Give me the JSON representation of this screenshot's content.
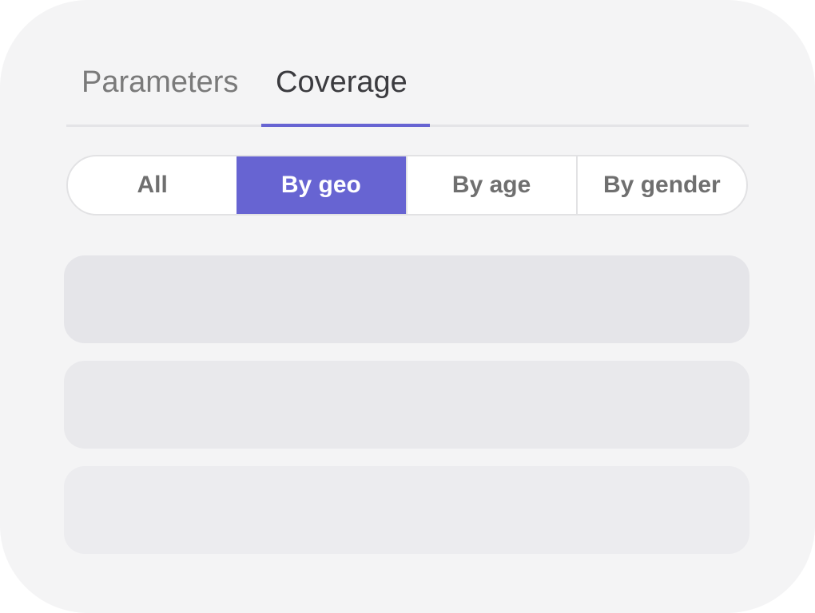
{
  "tabs": [
    {
      "label": "Parameters",
      "active": false
    },
    {
      "label": "Coverage",
      "active": true
    }
  ],
  "segments": [
    {
      "label": "All"
    },
    {
      "label": "By geo",
      "active": true
    },
    {
      "label": "By age"
    },
    {
      "label": "By gender"
    }
  ],
  "colors": {
    "accent": "#6764d2",
    "background": "#f4f4f5",
    "skeleton": [
      "#e5e5e9",
      "#e9e9ec",
      "#ececef"
    ]
  }
}
